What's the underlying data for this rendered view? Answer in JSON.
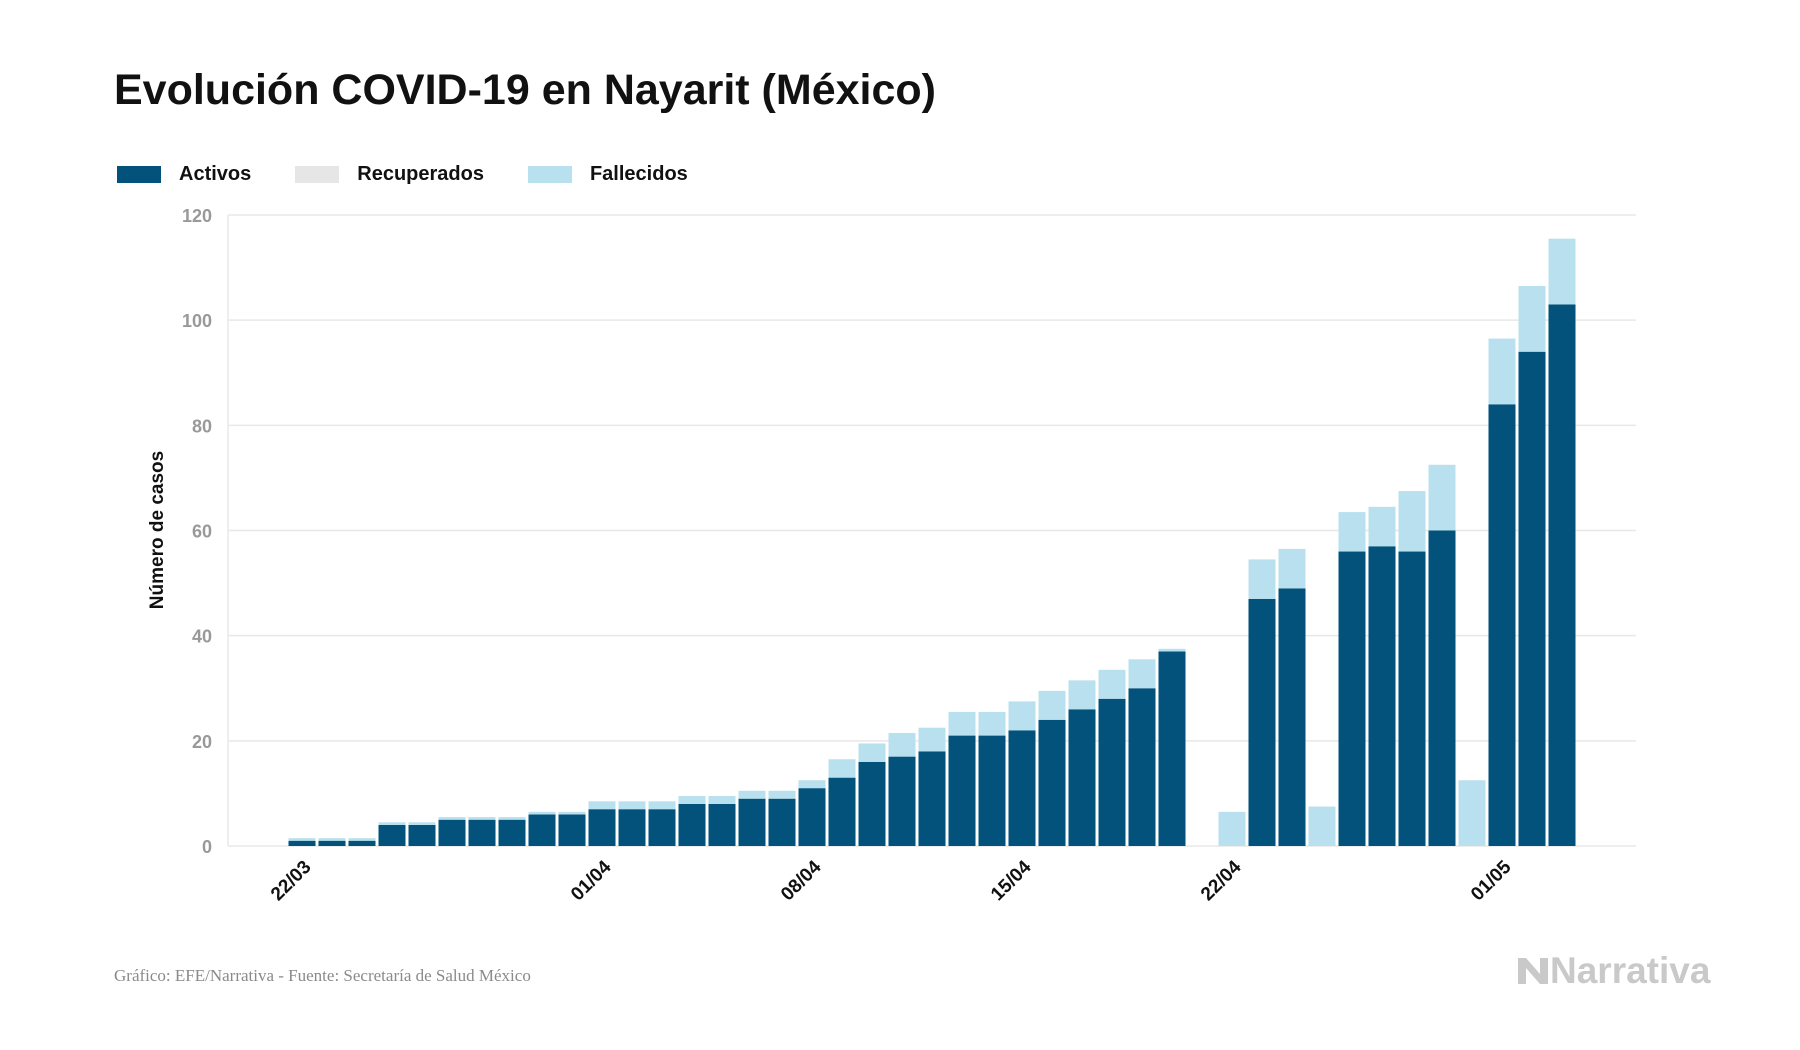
{
  "colors": {
    "activos": "#02527b",
    "recuperados": "#e6e6e6",
    "fallecidos": "#b8e0ee",
    "grid": "#e8e8e8",
    "tick": "#999999",
    "brand": "#c9c9c9"
  },
  "footer": {
    "source": "Gráfico: EFE/Narrativa - Fuente: Secretaría de Salud México",
    "brand": "Narrativa",
    "brand_icon": "narrativa-logo-icon"
  },
  "chart_data": {
    "type": "bar",
    "stacked": true,
    "title": "Evolución COVID-19 en Nayarit (México)",
    "ylabel": "Número de casos",
    "xlabel": "",
    "ylim": [
      0,
      120
    ],
    "yticks": [
      0,
      20,
      40,
      60,
      80,
      100,
      120
    ],
    "grid": true,
    "legend_position": "top-left",
    "xtick_labels": [
      "22/03",
      "01/04",
      "08/04",
      "15/04",
      "22/04",
      "01/05"
    ],
    "categories": [
      "22/03",
      "23/03",
      "24/03",
      "25/03",
      "26/03",
      "27/03",
      "28/03",
      "29/03",
      "30/03",
      "31/03",
      "01/04",
      "02/04",
      "03/04",
      "04/04",
      "05/04",
      "06/04",
      "07/04",
      "08/04",
      "09/04",
      "10/04",
      "11/04",
      "12/04",
      "13/04",
      "14/04",
      "15/04",
      "16/04",
      "17/04",
      "18/04",
      "19/04",
      "20/04",
      "21/04",
      "22/04",
      "23/04",
      "24/04",
      "25/04",
      "26/04",
      "27/04",
      "28/04",
      "29/04",
      "30/04",
      "01/05",
      "02/05",
      "03/05"
    ],
    "series": [
      {
        "name": "Activos",
        "values": [
          1,
          1,
          1,
          4,
          4,
          5,
          5,
          5,
          6,
          6,
          7,
          7,
          7,
          8,
          8,
          9,
          9,
          11,
          13,
          16,
          17,
          18,
          21,
          21,
          22,
          24,
          26,
          28,
          30,
          37,
          null,
          0,
          47,
          49,
          0,
          56,
          57,
          56,
          60,
          0,
          84,
          94,
          103
        ]
      },
      {
        "name": "Recuperados",
        "values": [
          0,
          0,
          0,
          0,
          0,
          0,
          0,
          0,
          0,
          0,
          0,
          0,
          0,
          0,
          0,
          0,
          0,
          0,
          0,
          0,
          0,
          0,
          0,
          0,
          0,
          0,
          0,
          0,
          0,
          0,
          null,
          0,
          0,
          0,
          0,
          0,
          0,
          0,
          0,
          0,
          0,
          0,
          0
        ]
      },
      {
        "name": "Fallecidos",
        "values": [
          0.5,
          0.5,
          0.5,
          0.5,
          0.5,
          0.5,
          0.5,
          0.5,
          0.5,
          0.5,
          1.5,
          1.5,
          1.5,
          1.5,
          1.5,
          1.5,
          1.5,
          1.5,
          3.5,
          3.5,
          4.5,
          4.5,
          4.5,
          4.5,
          5.5,
          5.5,
          5.5,
          5.5,
          5.5,
          0.5,
          null,
          6.5,
          7.5,
          7.5,
          7.5,
          7.5,
          7.5,
          11.5,
          12.5,
          12.5,
          12.5,
          12.5,
          12.5
        ]
      }
    ]
  }
}
